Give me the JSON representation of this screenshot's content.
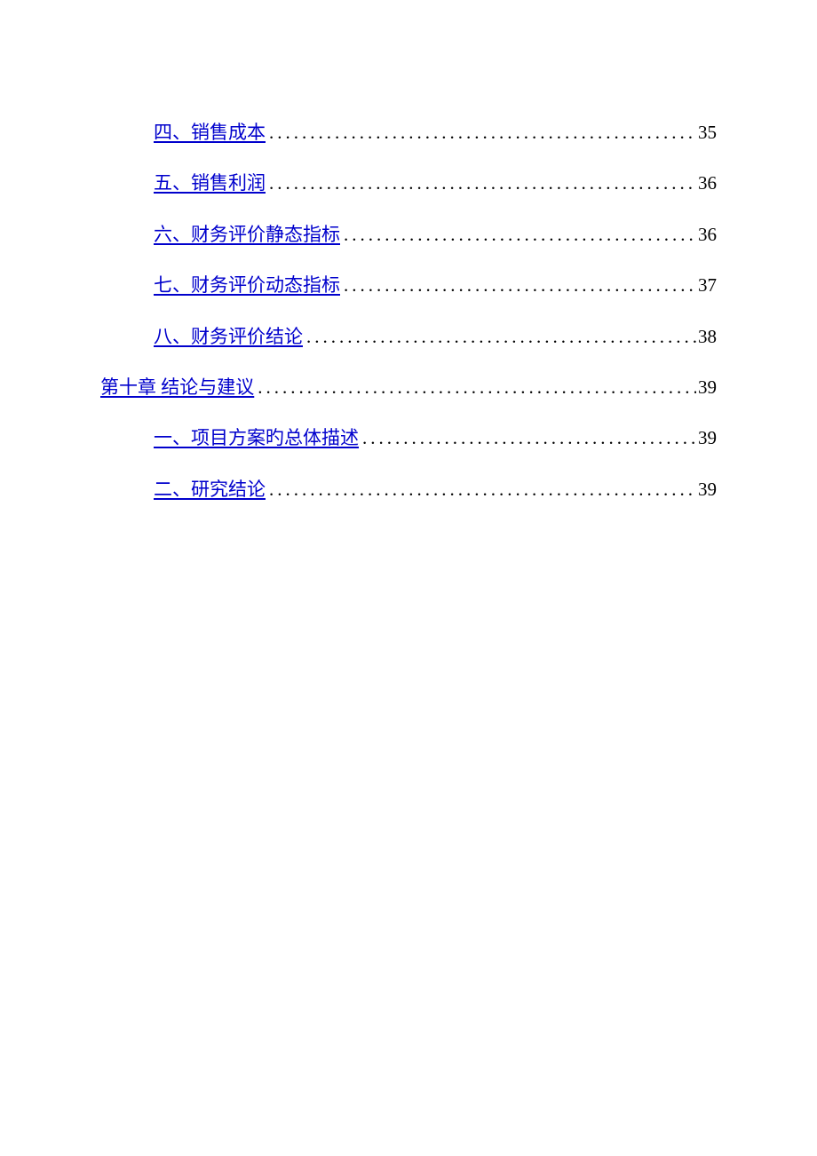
{
  "toc": {
    "link_color": "#0000cc",
    "text_color": "#000000",
    "background_color": "#ffffff",
    "font_size": 21,
    "entries": [
      {
        "level": 2,
        "label": "四、销售成本",
        "page": "35"
      },
      {
        "level": 2,
        "label": "五、销售利润",
        "page": "36"
      },
      {
        "level": 2,
        "label": "六、财务评价静态指标",
        "page": "36"
      },
      {
        "level": 2,
        "label": "七、财务评价动态指标",
        "page": "37"
      },
      {
        "level": 2,
        "label": "八、财务评价结论",
        "page": "38"
      },
      {
        "level": 1,
        "label": "第十章   结论与建议",
        "page": "39"
      },
      {
        "level": 2,
        "label": "一、项目方案旳总体描述",
        "page": "39"
      },
      {
        "level": 2,
        "label": "二、研究结论",
        "page": "39"
      }
    ]
  }
}
